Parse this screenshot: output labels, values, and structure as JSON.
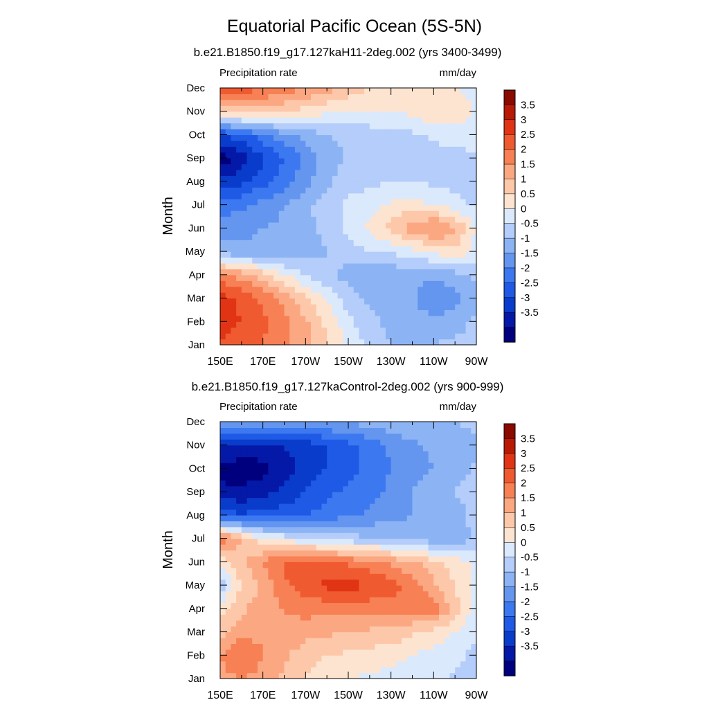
{
  "figure": {
    "title": "Equatorial Pacific Ocean (5S-5N)"
  },
  "chart_data": [
    {
      "type": "heatmap",
      "title": "b.e21.B1850.f19_g17.127kaH11-2deg.002 (yrs 3400-3499)",
      "left_string": "Precipitation rate",
      "right_string": "mm/day",
      "xlabel": "",
      "ylabel": "Month",
      "x_ticks": [
        "150E",
        "170E",
        "170W",
        "150W",
        "130W",
        "110W",
        "90W"
      ],
      "x_values": [
        150,
        170,
        190,
        210,
        230,
        250,
        270
      ],
      "xlim": [
        150,
        270
      ],
      "y_ticks": [
        "Jan",
        "Feb",
        "Mar",
        "Apr",
        "May",
        "Jun",
        "Jul",
        "Aug",
        "Sep",
        "Oct",
        "Nov",
        "Dec"
      ],
      "ylim": [
        1,
        12
      ],
      "grid_x": [
        150,
        160,
        170,
        180,
        190,
        200,
        210,
        220,
        230,
        240,
        250,
        260,
        270
      ],
      "values": [
        [
          3.0,
          2.8,
          2.5,
          2.1,
          1.6,
          1.0,
          0.4,
          -0.2,
          -0.5,
          -0.6,
          -0.5,
          -0.4,
          -0.3
        ],
        [
          3.1,
          3.0,
          2.6,
          2.2,
          1.6,
          0.9,
          0.2,
          -0.4,
          -0.6,
          -0.7,
          -0.8,
          -0.7,
          -0.4
        ],
        [
          3.2,
          2.9,
          2.4,
          1.8,
          1.1,
          0.4,
          -0.3,
          -0.6,
          -0.8,
          -0.9,
          -1.6,
          -1.2,
          -0.6
        ],
        [
          2.2,
          1.8,
          1.2,
          0.6,
          0.0,
          -0.4,
          -0.7,
          -0.8,
          -0.9,
          -0.9,
          -0.8,
          -0.7,
          -0.4
        ],
        [
          -0.8,
          -0.9,
          -0.9,
          -0.9,
          -0.8,
          -0.5,
          -0.2,
          0.0,
          0.1,
          0.3,
          0.6,
          0.9,
          0.3
        ],
        [
          -1.2,
          -1.1,
          -1.0,
          -0.9,
          -0.7,
          -0.3,
          0.1,
          0.6,
          1.2,
          1.8,
          2.2,
          1.6,
          0.4
        ],
        [
          -1.8,
          -1.6,
          -1.3,
          -1.0,
          -0.6,
          -0.2,
          0.1,
          0.3,
          0.6,
          0.7,
          0.5,
          0.2,
          -0.1
        ],
        [
          -2.9,
          -2.6,
          -2.2,
          -1.8,
          -1.2,
          -0.6,
          -0.2,
          -0.1,
          0.0,
          0.0,
          -0.1,
          -0.2,
          -0.1
        ],
        [
          -3.8,
          -3.3,
          -2.6,
          -2.0,
          -1.4,
          -0.8,
          -0.4,
          -0.3,
          -0.3,
          -0.2,
          -0.2,
          -0.2,
          -0.1
        ],
        [
          -2.6,
          -2.2,
          -1.7,
          -1.2,
          -0.8,
          -0.5,
          -0.4,
          -0.3,
          -0.2,
          -0.1,
          0.1,
          0.2,
          0.3
        ],
        [
          1.2,
          1.3,
          1.2,
          1.0,
          0.8,
          0.6,
          0.5,
          0.5,
          0.5,
          0.6,
          0.9,
          1.0,
          0.4
        ],
        [
          2.9,
          2.8,
          2.6,
          2.3,
          2.0,
          1.7,
          1.3,
          1.0,
          0.8,
          0.7,
          0.6,
          0.5,
          0.2
        ]
      ]
    },
    {
      "type": "heatmap",
      "title": "b.e21.B1850.f19_g17.127kaControl-2deg.002 (yrs 900-999)",
      "left_string": "Precipitation rate",
      "right_string": "mm/day",
      "xlabel": "",
      "ylabel": "Month",
      "x_ticks": [
        "150E",
        "170E",
        "170W",
        "150W",
        "130W",
        "110W",
        "90W"
      ],
      "x_values": [
        150,
        170,
        190,
        210,
        230,
        250,
        270
      ],
      "xlim": [
        150,
        270
      ],
      "y_ticks": [
        "Jan",
        "Feb",
        "Mar",
        "Apr",
        "May",
        "Jun",
        "Jul",
        "Aug",
        "Sep",
        "Oct",
        "Nov",
        "Dec"
      ],
      "ylim": [
        1,
        12
      ],
      "grid_x": [
        150,
        160,
        170,
        180,
        190,
        200,
        210,
        220,
        230,
        240,
        250,
        260,
        270
      ],
      "values": [
        [
          1.8,
          2.0,
          1.8,
          1.4,
          1.0,
          0.7,
          0.5,
          0.4,
          0.3,
          0.2,
          0.1,
          -0.1,
          -0.3
        ],
        [
          2.0,
          2.6,
          2.0,
          1.6,
          1.2,
          1.0,
          0.9,
          0.8,
          0.7,
          0.5,
          0.3,
          0.2,
          -0.2
        ],
        [
          1.3,
          1.8,
          1.9,
          1.9,
          1.7,
          1.6,
          1.5,
          1.4,
          1.3,
          1.1,
          0.8,
          0.5,
          0.1
        ],
        [
          0.8,
          1.4,
          1.8,
          2.0,
          2.2,
          2.2,
          2.3,
          2.2,
          2.2,
          2.2,
          2.4,
          1.2,
          0.3
        ],
        [
          -0.3,
          1.0,
          1.6,
          2.4,
          2.8,
          3.1,
          3.2,
          3.0,
          2.8,
          2.2,
          1.6,
          1.0,
          0.4
        ],
        [
          0.6,
          1.4,
          2.0,
          2.6,
          2.7,
          2.6,
          2.4,
          2.2,
          1.9,
          1.6,
          1.2,
          0.8,
          0.3
        ],
        [
          2.5,
          1.4,
          0.6,
          0.3,
          0.1,
          -0.1,
          -0.3,
          -0.4,
          -0.5,
          -0.6,
          -0.8,
          -0.9,
          -0.4
        ],
        [
          -2.2,
          -2.4,
          -2.3,
          -2.2,
          -2.0,
          -1.8,
          -1.6,
          -1.4,
          -1.2,
          -1.0,
          -0.9,
          -0.8,
          -0.2
        ],
        [
          -3.4,
          -3.4,
          -3.2,
          -2.9,
          -2.5,
          -2.1,
          -1.9,
          -1.7,
          -1.4,
          -1.0,
          -0.7,
          -0.5,
          -0.2
        ],
        [
          -3.6,
          -3.8,
          -3.7,
          -3.2,
          -2.8,
          -2.5,
          -2.2,
          -1.8,
          -1.5,
          -1.2,
          -1.0,
          -0.8,
          -0.4
        ],
        [
          -3.0,
          -3.2,
          -3.1,
          -3.0,
          -2.8,
          -2.5,
          -2.2,
          -1.8,
          -1.4,
          -1.1,
          -0.9,
          -0.8,
          -0.6
        ],
        [
          -1.0,
          -1.2,
          -1.2,
          -1.1,
          -1.1,
          -1.0,
          -0.9,
          -0.8,
          -0.7,
          -0.6,
          -0.5,
          -0.5,
          -0.4
        ]
      ]
    }
  ],
  "colorbar": {
    "labels": [
      "3.5",
      "3",
      "2.5",
      "2",
      "1.5",
      "1",
      "0.5",
      "0",
      "-0.5",
      "-1",
      "-1.5",
      "-2",
      "-2.5",
      "-3",
      "-3.5"
    ],
    "levels": [
      -3.5,
      -3,
      -2.5,
      -2,
      -1.5,
      -1,
      -0.5,
      0,
      0.5,
      1,
      1.5,
      2,
      2.5,
      3,
      3.5
    ],
    "colors": [
      "#00007f",
      "#0519a8",
      "#0a3ccc",
      "#1e5ae6",
      "#3c78f0",
      "#6496f0",
      "#8cb4f5",
      "#b4cdfa",
      "#dbe9fc",
      "#fde4d0",
      "#fdc8aa",
      "#fba882",
      "#f78054",
      "#f05a30",
      "#e03414",
      "#b81a04",
      "#8a0a00"
    ]
  }
}
